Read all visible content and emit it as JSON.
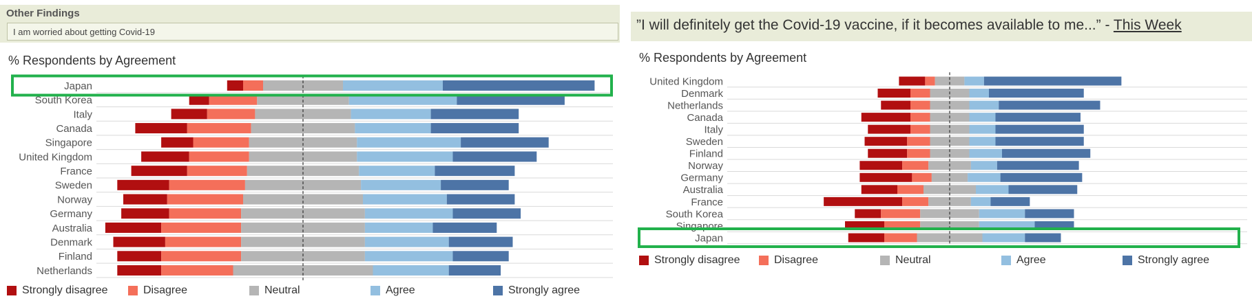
{
  "colors": {
    "strongly_disagree": "#b10f10",
    "disagree": "#f46f5a",
    "neutral": "#b5b5b5",
    "agree": "#93bfe0",
    "strongly_agree": "#4d74a6",
    "highlight": "#22b14c"
  },
  "left": {
    "header": "Other Findings",
    "filter_value": "I am worried about getting Covid-19",
    "chart_title": "% Respondents by Agreement",
    "legend": [
      "Strongly disagree",
      "Disagree",
      "Neutral",
      "Agree",
      "Strongly agree"
    ]
  },
  "right": {
    "quote": "”I will definitely get the Covid-19 vaccine, if it becomes available to me...” - ",
    "quote_link": "This Week",
    "chart_title": "% Respondents by Agreement",
    "legend": [
      "Strongly disagree",
      "Disagree",
      "Neutral",
      "Agree",
      "Strongly agree"
    ]
  },
  "chart_data": [
    {
      "type": "bar",
      "orientation": "horizontal-diverging",
      "title": "% Respondents by Agreement",
      "subject": "I am worried about getting Covid-19",
      "series_names": [
        "Strongly disagree",
        "Disagree",
        "Neutral",
        "Agree",
        "Strongly agree"
      ],
      "highlighted": "Japan",
      "categories": [
        "Japan",
        "South Korea",
        "Italy",
        "Canada",
        "Singapore",
        "United Kingdom",
        "France",
        "Sweden",
        "Norway",
        "Germany",
        "Australia",
        "Denmark",
        "Finland",
        "Netherlands"
      ],
      "values": [
        [
          4,
          5,
          20,
          25,
          38
        ],
        [
          5,
          12,
          23,
          27,
          27
        ],
        [
          9,
          12,
          24,
          20,
          22
        ],
        [
          13,
          16,
          26,
          19,
          22
        ],
        [
          8,
          14,
          27,
          26,
          22
        ],
        [
          12,
          15,
          27,
          24,
          21
        ],
        [
          14,
          15,
          28,
          19,
          20
        ],
        [
          13,
          19,
          29,
          20,
          17
        ],
        [
          11,
          19,
          30,
          21,
          17
        ],
        [
          12,
          18,
          31,
          22,
          17
        ],
        [
          14,
          20,
          31,
          17,
          16
        ],
        [
          13,
          19,
          31,
          21,
          16
        ],
        [
          11,
          20,
          31,
          22,
          14
        ],
        [
          11,
          18,
          35,
          19,
          13
        ]
      ]
    },
    {
      "type": "bar",
      "orientation": "horizontal-diverging",
      "title": "% Respondents by Agreement",
      "subject": "I will definitely get the Covid-19 vaccine, if it becomes available to me...",
      "series_names": [
        "Strongly disagree",
        "Disagree",
        "Neutral",
        "Agree",
        "Strongly agree"
      ],
      "highlighted": "Japan",
      "categories": [
        "United Kingdom",
        "Denmark",
        "Netherlands",
        "Canada",
        "Italy",
        "Sweden",
        "Finland",
        "Norway",
        "Germany",
        "Australia",
        "France",
        "South Korea",
        "Singapore",
        "Japan"
      ],
      "values": [
        [
          8,
          3,
          9,
          6,
          42
        ],
        [
          10,
          6,
          12,
          6,
          29
        ],
        [
          9,
          6,
          12,
          9,
          31
        ],
        [
          15,
          6,
          12,
          8,
          26
        ],
        [
          13,
          6,
          12,
          8,
          27
        ],
        [
          13,
          7,
          12,
          8,
          27
        ],
        [
          12,
          7,
          12,
          10,
          27
        ],
        [
          13,
          8,
          13,
          8,
          25
        ],
        [
          16,
          6,
          11,
          10,
          25
        ],
        [
          11,
          8,
          16,
          10,
          21
        ],
        [
          24,
          8,
          13,
          6,
          12
        ],
        [
          8,
          12,
          18,
          14,
          15
        ],
        [
          12,
          11,
          18,
          17,
          12
        ],
        [
          11,
          10,
          20,
          13,
          11
        ]
      ]
    }
  ]
}
